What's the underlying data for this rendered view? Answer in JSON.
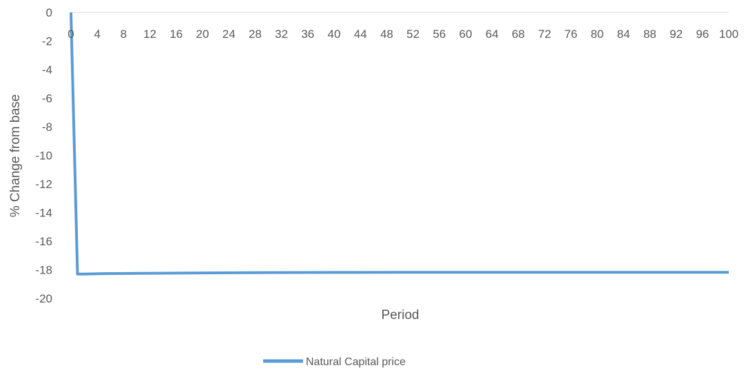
{
  "chart_data": {
    "type": "line",
    "title": "",
    "xlabel": "Period",
    "ylabel": "% Change from base",
    "x_ticks": [
      0,
      4,
      8,
      12,
      16,
      20,
      24,
      28,
      32,
      36,
      40,
      44,
      48,
      52,
      56,
      60,
      64,
      68,
      72,
      76,
      80,
      84,
      88,
      92,
      96,
      100
    ],
    "y_ticks": [
      0,
      -2,
      -4,
      -6,
      -8,
      -10,
      -12,
      -14,
      -16,
      -18,
      -20
    ],
    "xlim": [
      0,
      100
    ],
    "ylim": [
      -20,
      0
    ],
    "grid": false,
    "legend_position": "bottom-center",
    "series": [
      {
        "name": "Natural Capital price",
        "color": "#5B9BD5",
        "x": [
          0,
          1,
          2,
          5,
          10,
          20,
          30,
          40,
          50,
          60,
          70,
          80,
          90,
          100
        ],
        "y": [
          0,
          -18.3,
          -18.3,
          -18.27,
          -18.25,
          -18.22,
          -18.2,
          -18.19,
          -18.18,
          -18.18,
          -18.18,
          -18.18,
          -18.18,
          -18.18
        ]
      }
    ]
  }
}
